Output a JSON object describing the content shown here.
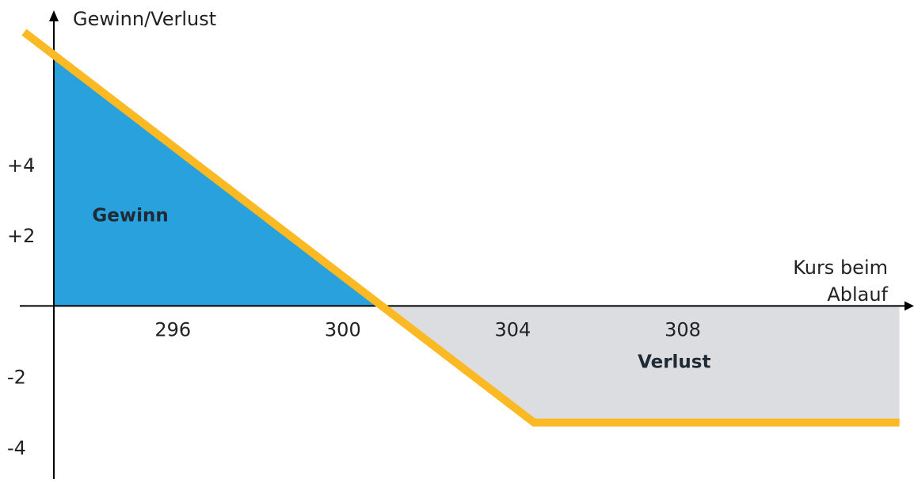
{
  "chart_data": {
    "type": "line",
    "ylabel": "Gewinn/Verlust",
    "xlabel_lines": [
      "Kurs beim",
      "Ablauf"
    ],
    "x_ticks": [
      296,
      300,
      304,
      308
    ],
    "y_ticks": [
      {
        "value": 4,
        "label": "+4"
      },
      {
        "value": 2,
        "label": "+2"
      },
      {
        "value": -2,
        "label": "-2"
      },
      {
        "value": -4,
        "label": "-4"
      }
    ],
    "xlim": [
      293.2,
      313.2
    ],
    "ylim": [
      -4.9,
      8.1
    ],
    "series": [
      {
        "points": [
          [
            292.5,
            7.75
          ],
          [
            304.5,
            -3.3
          ],
          [
            313.1,
            -3.3
          ]
        ]
      }
    ],
    "regions": [
      {
        "label": "Gewinn",
        "label_x": 295,
        "label_y": 2.4
      },
      {
        "label": "Verlust",
        "label_x": 307.8,
        "label_y": -1.75
      }
    ],
    "colors": {
      "line": "#fbb924",
      "profit_fill": "#28a1dc",
      "loss_fill": "#dcdde0",
      "axis": "#000000",
      "text": "#222222"
    }
  }
}
